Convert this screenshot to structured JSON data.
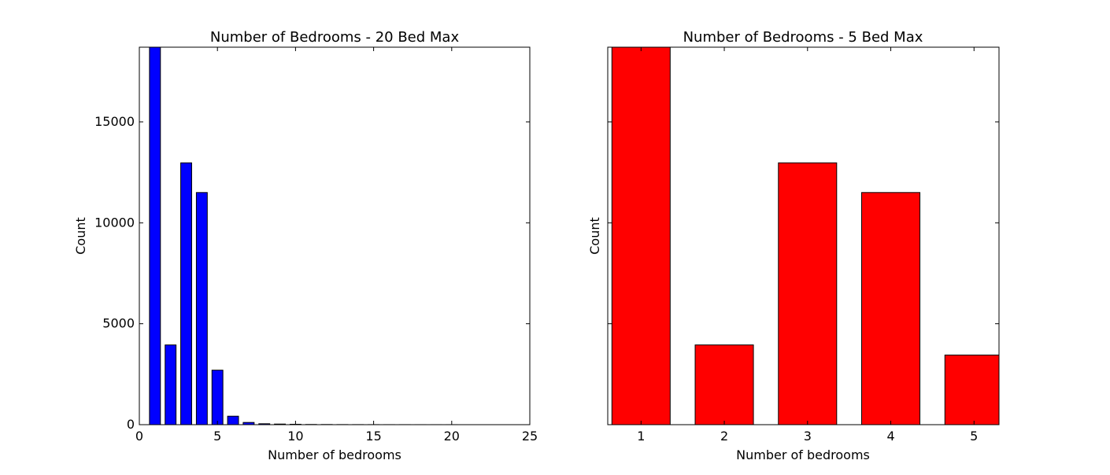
{
  "chart_data": [
    {
      "type": "bar",
      "title": "Number of Bedrooms - 20 Bed Max",
      "xlabel": "Number of bedrooms",
      "ylabel": "Count",
      "x": [
        1,
        2,
        3,
        4,
        5,
        6,
        7,
        8,
        9,
        10,
        11,
        12,
        13,
        14,
        15,
        16,
        17,
        18,
        19,
        20
      ],
      "values": [
        18700,
        3950,
        12970,
        11500,
        2700,
        420,
        110,
        45,
        30,
        20,
        10,
        8,
        5,
        4,
        3,
        2,
        2,
        1,
        1,
        1
      ],
      "bar_color": "#0000ff",
      "xlim": [
        0,
        25
      ],
      "ylim": [
        0,
        18700
      ],
      "xticks": [
        0,
        5,
        10,
        15,
        20,
        25
      ],
      "yticks": [
        0,
        5000,
        10000,
        15000
      ],
      "xtick_labels": [
        "0",
        "5",
        "10",
        "15",
        "20",
        "25"
      ],
      "ytick_labels": [
        "0",
        "5000",
        "10000",
        "15000"
      ],
      "grid": false
    },
    {
      "type": "bar",
      "title": "Number of Bedrooms - 5 Bed Max",
      "xlabel": "Number of bedrooms",
      "ylabel": "Count",
      "x": [
        1,
        2,
        3,
        4,
        5
      ],
      "values": [
        18700,
        3950,
        12970,
        11500,
        3450
      ],
      "bar_color": "#ff0000",
      "xlim": [
        0.6,
        5.3
      ],
      "ylim": [
        0,
        18700
      ],
      "xticks": [
        1,
        2,
        3,
        4,
        5
      ],
      "yticks": [
        0,
        5000,
        10000,
        15000
      ],
      "xtick_labels": [
        "1",
        "2",
        "3",
        "4",
        "5"
      ],
      "ytick_labels": [],
      "grid": false
    }
  ]
}
